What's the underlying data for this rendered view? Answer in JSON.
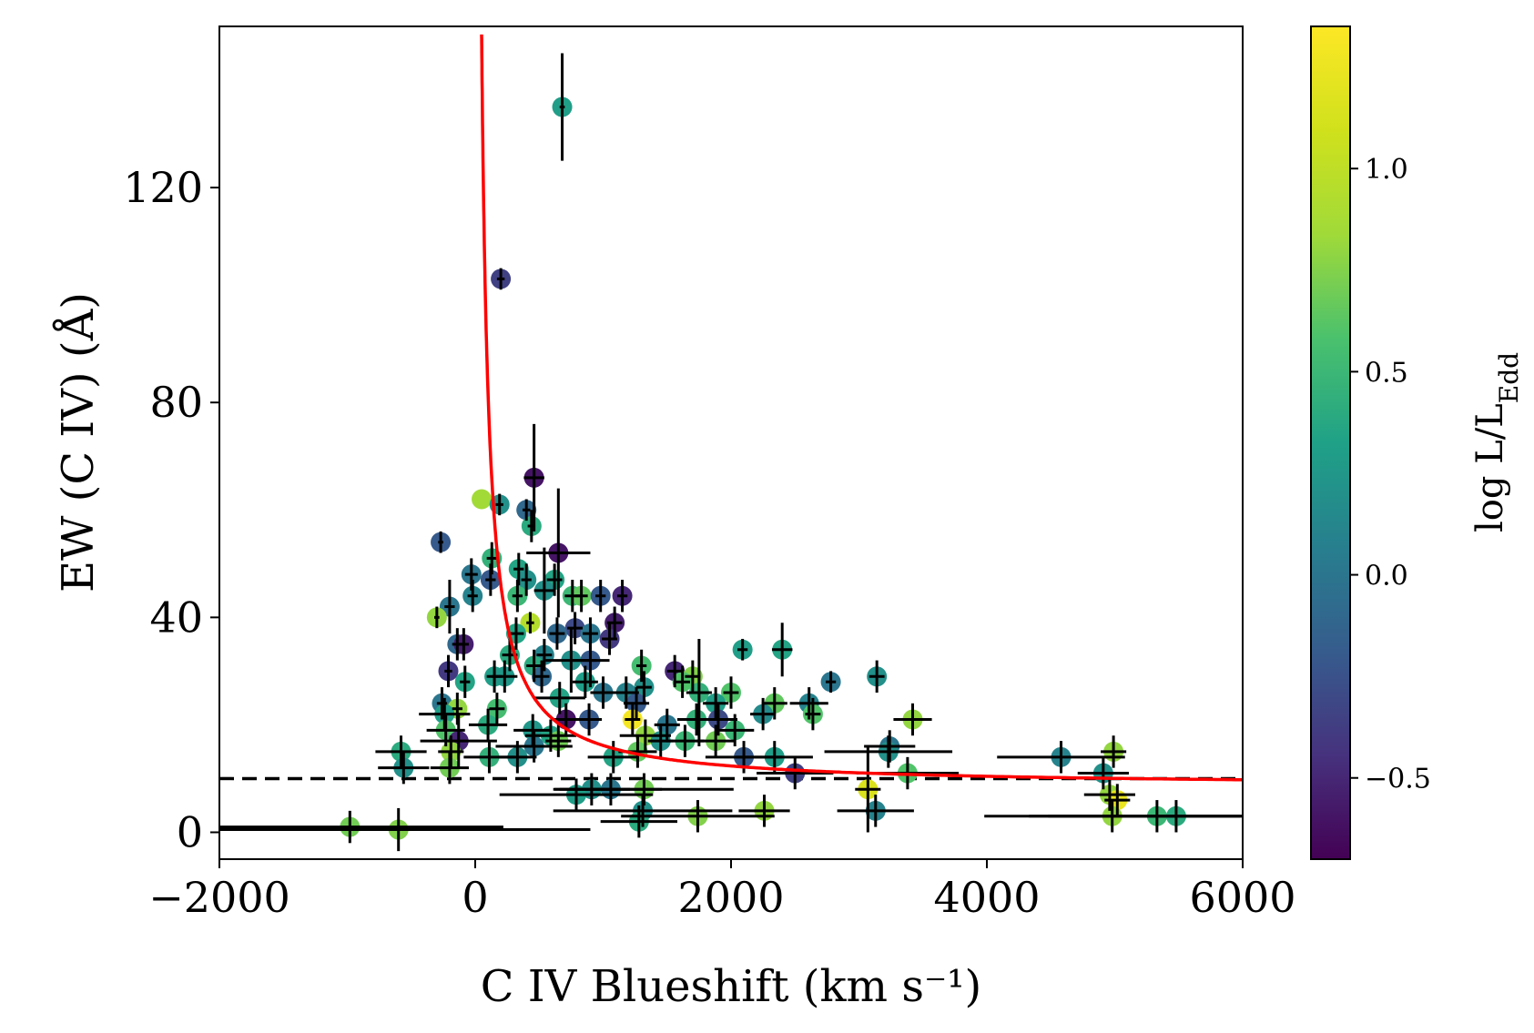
{
  "chart_data": {
    "type": "scatter",
    "xlabel": "C IV Blueshift (km s⁻¹)",
    "ylabel": "EW (C IV) (Å)",
    "xlim": [
      -2000,
      6000
    ],
    "ylim": [
      -5,
      150
    ],
    "xticks": [
      -2000,
      0,
      2000,
      4000,
      6000
    ],
    "xtick_labels": [
      "−2000",
      "0",
      "2000",
      "4000",
      "6000"
    ],
    "yticks": [
      0,
      40,
      80,
      120
    ],
    "ytick_labels": [
      "0",
      "40",
      "80",
      "120"
    ],
    "colorbar": {
      "label": "log L/L_Edd",
      "label_main": "log L/L",
      "label_sub": "Edd",
      "colormap": "viridis",
      "range": [
        -0.7,
        1.35
      ],
      "ticks": [
        -0.5,
        0.0,
        0.5,
        1.0
      ],
      "tick_labels": [
        "−0.5",
        "0.0",
        "0.5",
        "1.0"
      ]
    },
    "reference_line": {
      "y": 10,
      "style": "dashed",
      "color": "#000000"
    },
    "fit_curve": {
      "color": "#ff0000",
      "x_start": 50,
      "x_end": 6000
    },
    "points": [
      {
        "x": 680,
        "y": 135,
        "c": 0.3,
        "xe": 20,
        "ye": 10
      },
      {
        "x": 200,
        "y": 103,
        "c": -0.35,
        "xe": 30,
        "ye": 2
      },
      {
        "x": 460,
        "y": 66,
        "c": -0.6,
        "xe": 80,
        "ye": 10
      },
      {
        "x": 50,
        "y": 62,
        "c": 0.85,
        "xe": 0,
        "ye": 0
      },
      {
        "x": 190,
        "y": 61,
        "c": 0.2,
        "xe": 30,
        "ye": 2
      },
      {
        "x": 400,
        "y": 60,
        "c": -0.1,
        "xe": 30,
        "ye": 2
      },
      {
        "x": 440,
        "y": 57,
        "c": 0.4,
        "xe": 30,
        "ye": 3
      },
      {
        "x": -270,
        "y": 54,
        "c": -0.2,
        "xe": 20,
        "ye": 2
      },
      {
        "x": 650,
        "y": 52,
        "c": -0.6,
        "xe": 250,
        "ye": 12
      },
      {
        "x": 130,
        "y": 51,
        "c": 0.45,
        "xe": 40,
        "ye": 3
      },
      {
        "x": -30,
        "y": 48,
        "c": 0.0,
        "xe": 50,
        "ye": 3
      },
      {
        "x": 340,
        "y": 49,
        "c": 0.35,
        "xe": 40,
        "ye": 3
      },
      {
        "x": 120,
        "y": 47,
        "c": -0.2,
        "xe": 40,
        "ye": 3
      },
      {
        "x": 400,
        "y": 47,
        "c": 0.2,
        "xe": 40,
        "ye": 3
      },
      {
        "x": 620,
        "y": 47,
        "c": 0.35,
        "xe": 60,
        "ye": 3
      },
      {
        "x": 540,
        "y": 45,
        "c": 0.2,
        "xe": 80,
        "ye": 8
      },
      {
        "x": 760,
        "y": 44,
        "c": 0.5,
        "xe": 60,
        "ye": 3
      },
      {
        "x": 830,
        "y": 44,
        "c": 0.65,
        "xe": 50,
        "ye": 3
      },
      {
        "x": 980,
        "y": 44,
        "c": -0.2,
        "xe": 40,
        "ye": 3
      },
      {
        "x": 1150,
        "y": 44,
        "c": -0.5,
        "xe": 40,
        "ye": 3
      },
      {
        "x": -20,
        "y": 44,
        "c": 0.1,
        "xe": 40,
        "ye": 3
      },
      {
        "x": 330,
        "y": 44,
        "c": 0.5,
        "xe": 40,
        "ye": 3
      },
      {
        "x": -200,
        "y": 42,
        "c": 0.0,
        "xe": 40,
        "ye": 5
      },
      {
        "x": -300,
        "y": 40,
        "c": 0.8,
        "xe": 20,
        "ye": 2
      },
      {
        "x": 430,
        "y": 39,
        "c": 0.95,
        "xe": 30,
        "ye": 2
      },
      {
        "x": 1090,
        "y": 39,
        "c": -0.55,
        "xe": 60,
        "ye": 3
      },
      {
        "x": 780,
        "y": 38,
        "c": -0.3,
        "xe": 60,
        "ye": 3
      },
      {
        "x": 900,
        "y": 37,
        "c": 0.0,
        "xe": 60,
        "ye": 3
      },
      {
        "x": 320,
        "y": 37,
        "c": 0.35,
        "xe": 60,
        "ye": 3
      },
      {
        "x": 640,
        "y": 37,
        "c": -0.1,
        "xe": 60,
        "ye": 3
      },
      {
        "x": 1050,
        "y": 36,
        "c": -0.4,
        "xe": 60,
        "ye": 3
      },
      {
        "x": -140,
        "y": 35,
        "c": -0.1,
        "xe": 40,
        "ye": 3
      },
      {
        "x": -90,
        "y": 35,
        "c": -0.55,
        "xe": 40,
        "ye": 3
      },
      {
        "x": 270,
        "y": 33,
        "c": 0.4,
        "xe": 60,
        "ye": 3
      },
      {
        "x": 540,
        "y": 33,
        "c": 0.1,
        "xe": 60,
        "ye": 3
      },
      {
        "x": 2090,
        "y": 34,
        "c": 0.3,
        "xe": 40,
        "ye": 2
      },
      {
        "x": 2400,
        "y": 34,
        "c": 0.35,
        "xe": 80,
        "ye": 5
      },
      {
        "x": 750,
        "y": 32,
        "c": 0.2,
        "xe": 200,
        "ye": 6
      },
      {
        "x": 900,
        "y": 32,
        "c": -0.2,
        "xe": 150,
        "ye": 5
      },
      {
        "x": 460,
        "y": 31,
        "c": 0.4,
        "xe": 60,
        "ye": 3
      },
      {
        "x": 1300,
        "y": 31,
        "c": 0.55,
        "xe": 40,
        "ye": 3
      },
      {
        "x": -210,
        "y": 30,
        "c": -0.4,
        "xe": 30,
        "ye": 3
      },
      {
        "x": 1560,
        "y": 30,
        "c": -0.5,
        "xe": 60,
        "ye": 3
      },
      {
        "x": 150,
        "y": 29,
        "c": 0.3,
        "xe": 60,
        "ye": 3
      },
      {
        "x": 1700,
        "y": 29,
        "c": 0.75,
        "xe": 60,
        "ye": 3
      },
      {
        "x": 3140,
        "y": 29,
        "c": 0.2,
        "xe": 60,
        "ye": 3
      },
      {
        "x": 520,
        "y": 29,
        "c": -0.1,
        "xe": 60,
        "ye": 3
      },
      {
        "x": 230,
        "y": 29,
        "c": 0.25,
        "xe": 100,
        "ye": 3
      },
      {
        "x": -80,
        "y": 28,
        "c": 0.35,
        "xe": 40,
        "ye": 3
      },
      {
        "x": 2780,
        "y": 28,
        "c": 0.0,
        "xe": 40,
        "ye": 2
      },
      {
        "x": 860,
        "y": 28,
        "c": 0.3,
        "xe": 100,
        "ye": 3
      },
      {
        "x": 1620,
        "y": 28,
        "c": 0.6,
        "xe": 60,
        "ye": 3
      },
      {
        "x": 1320,
        "y": 27,
        "c": 0.2,
        "xe": 60,
        "ye": 3
      },
      {
        "x": 1180,
        "y": 26,
        "c": 0.1,
        "xe": 100,
        "ye": 3
      },
      {
        "x": 1000,
        "y": 26,
        "c": 0.0,
        "xe": 100,
        "ye": 3
      },
      {
        "x": 1750,
        "y": 26,
        "c": 0.45,
        "xe": 100,
        "ye": 10
      },
      {
        "x": 2000,
        "y": 26,
        "c": 0.6,
        "xe": 60,
        "ye": 3
      },
      {
        "x": 660,
        "y": 25,
        "c": 0.35,
        "xe": 200,
        "ye": 3
      },
      {
        "x": -260,
        "y": 24,
        "c": 0.0,
        "xe": 40,
        "ye": 3
      },
      {
        "x": 2340,
        "y": 24,
        "c": 0.65,
        "xe": 100,
        "ye": 3
      },
      {
        "x": 2610,
        "y": 24,
        "c": 0.1,
        "xe": 150,
        "ye": 3
      },
      {
        "x": 1260,
        "y": 24,
        "c": -0.2,
        "xe": 100,
        "ye": 3
      },
      {
        "x": 1880,
        "y": 24,
        "c": 0.3,
        "xe": 100,
        "ye": 3
      },
      {
        "x": -140,
        "y": 23,
        "c": 0.8,
        "xe": 40,
        "ye": 3
      },
      {
        "x": 170,
        "y": 23,
        "c": 0.55,
        "xe": 60,
        "ye": 3
      },
      {
        "x": -240,
        "y": 22,
        "c": 0.3,
        "xe": 200,
        "ye": 3
      },
      {
        "x": 2250,
        "y": 22,
        "c": 0.15,
        "xe": 100,
        "ye": 3
      },
      {
        "x": 2640,
        "y": 22,
        "c": 0.6,
        "xe": 60,
        "ye": 3
      },
      {
        "x": 890,
        "y": 21,
        "c": -0.2,
        "xe": 100,
        "ye": 3
      },
      {
        "x": 710,
        "y": 21,
        "c": -0.6,
        "xe": 100,
        "ye": 3
      },
      {
        "x": 1230,
        "y": 21,
        "c": 1.3,
        "xe": 60,
        "ye": 3
      },
      {
        "x": 3420,
        "y": 21,
        "c": 0.8,
        "xe": 150,
        "ye": 3
      },
      {
        "x": 1900,
        "y": 21,
        "c": -0.3,
        "xe": 150,
        "ye": 3
      },
      {
        "x": 1730,
        "y": 21,
        "c": 0.45,
        "xe": 150,
        "ye": 3
      },
      {
        "x": 1500,
        "y": 20,
        "c": 0.0,
        "xe": 100,
        "ye": 3
      },
      {
        "x": 100,
        "y": 20,
        "c": 0.4,
        "xe": 150,
        "ye": 3
      },
      {
        "x": -230,
        "y": 19,
        "c": 0.6,
        "xe": 150,
        "ye": 3
      },
      {
        "x": 450,
        "y": 19,
        "c": 0.25,
        "xe": 150,
        "ye": 3
      },
      {
        "x": 2030,
        "y": 19,
        "c": 0.5,
        "xe": 150,
        "ye": 3
      },
      {
        "x": 590,
        "y": 18,
        "c": 0.35,
        "xe": 200,
        "ye": 3
      },
      {
        "x": 1330,
        "y": 18,
        "c": 0.8,
        "xe": 200,
        "ye": 3
      },
      {
        "x": 1450,
        "y": 17,
        "c": 0.2,
        "xe": 100,
        "ye": 3
      },
      {
        "x": 1640,
        "y": 17,
        "c": 0.5,
        "xe": 150,
        "ye": 3
      },
      {
        "x": 1880,
        "y": 17,
        "c": 0.7,
        "xe": 150,
        "ye": 3
      },
      {
        "x": -130,
        "y": 17,
        "c": -0.5,
        "xe": 300,
        "ye": 5
      },
      {
        "x": 650,
        "y": 17,
        "c": 0.7,
        "xe": 100,
        "ye": 3
      },
      {
        "x": 3240,
        "y": 16,
        "c": 0.0,
        "xe": 200,
        "ye": 3
      },
      {
        "x": 460,
        "y": 16,
        "c": 0.0,
        "xe": 300,
        "ye": 3
      },
      {
        "x": -580,
        "y": 15,
        "c": 0.4,
        "xe": 200,
        "ye": 3
      },
      {
        "x": -190,
        "y": 15,
        "c": 0.8,
        "xe": 100,
        "ye": 3
      },
      {
        "x": 1270,
        "y": 15,
        "c": 0.65,
        "xe": 150,
        "ye": 3
      },
      {
        "x": 4990,
        "y": 15,
        "c": 0.8,
        "xe": 100,
        "ye": 3
      },
      {
        "x": 3230,
        "y": 15,
        "c": 0.2,
        "xe": 500,
        "ye": 3
      },
      {
        "x": 4580,
        "y": 14,
        "c": 0.1,
        "xe": 500,
        "ye": 3
      },
      {
        "x": 2100,
        "y": 14,
        "c": -0.2,
        "xe": 300,
        "ye": 3
      },
      {
        "x": 2340,
        "y": 14,
        "c": 0.3,
        "xe": 300,
        "ye": 3
      },
      {
        "x": 1080,
        "y": 14,
        "c": 0.35,
        "xe": 200,
        "ye": 3
      },
      {
        "x": 330,
        "y": 14,
        "c": 0.2,
        "xe": 150,
        "ye": 3
      },
      {
        "x": 110,
        "y": 14,
        "c": 0.45,
        "xe": 200,
        "ye": 3
      },
      {
        "x": -560,
        "y": 12,
        "c": 0.2,
        "xe": 200,
        "ye": 3
      },
      {
        "x": -200,
        "y": 12,
        "c": 0.7,
        "xe": 150,
        "ye": 3
      },
      {
        "x": 2500,
        "y": 11,
        "c": -0.35,
        "xe": 300,
        "ye": 3
      },
      {
        "x": 3380,
        "y": 11,
        "c": 0.6,
        "xe": 400,
        "ye": 3
      },
      {
        "x": 4910,
        "y": 11,
        "c": 0.2,
        "xe": 200,
        "ye": 3
      },
      {
        "x": 3070,
        "y": 8,
        "c": 1.15,
        "xe": 100,
        "ye": 8
      },
      {
        "x": 1320,
        "y": 8,
        "c": 0.7,
        "xe": 700,
        "ye": 3
      },
      {
        "x": 910,
        "y": 8,
        "c": 0.2,
        "xe": 300,
        "ye": 3
      },
      {
        "x": 790,
        "y": 7,
        "c": 0.3,
        "xe": 600,
        "ye": 3
      },
      {
        "x": 1060,
        "y": 8,
        "c": 0.0,
        "xe": 400,
        "ye": 3
      },
      {
        "x": 4960,
        "y": 7,
        "c": 0.8,
        "xe": 200,
        "ye": 3
      },
      {
        "x": 5020,
        "y": 6,
        "c": 1.25,
        "xe": 100,
        "ye": 3
      },
      {
        "x": 1310,
        "y": 4,
        "c": 0.2,
        "xe": 700,
        "ye": 3
      },
      {
        "x": 3130,
        "y": 4,
        "c": 0.1,
        "xe": 300,
        "ye": 3
      },
      {
        "x": 2260,
        "y": 4,
        "c": 0.8,
        "xe": 200,
        "ye": 3
      },
      {
        "x": 1740,
        "y": 3,
        "c": 0.75,
        "xe": 600,
        "ye": 3
      },
      {
        "x": 4980,
        "y": 3,
        "c": 0.8,
        "xe": 1000,
        "ye": 3
      },
      {
        "x": 5330,
        "y": 3,
        "c": 0.5,
        "xe": 1000,
        "ye": 3
      },
      {
        "x": 5480,
        "y": 3,
        "c": 0.4,
        "xe": 1000,
        "ye": 3
      },
      {
        "x": 1280,
        "y": 2,
        "c": 0.4,
        "xe": 300,
        "ye": 3
      },
      {
        "x": -980,
        "y": 1,
        "c": 0.7,
        "xe": 1200,
        "ye": 3
      },
      {
        "x": -600,
        "y": 0.5,
        "c": 0.75,
        "xe": 1500,
        "ye": 4
      }
    ]
  }
}
